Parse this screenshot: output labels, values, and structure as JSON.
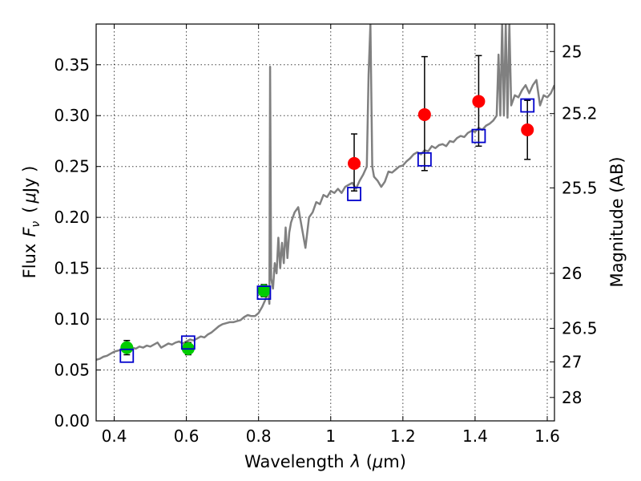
{
  "chart_data": {
    "type": "scatter",
    "xlabel_text": "Wavelength",
    "xlabel_symbol": "λ",
    "xlabel_unit_open": " (",
    "xlabel_unit_greek": "μ",
    "xlabel_unit_rest": "m)",
    "ylabel_text": "Flux",
    "ylabel_symbol": "F",
    "ylabel_subscript": "ν",
    "ylabel_unit_open": "(",
    "ylabel_unit_greek": "μ",
    "ylabel_unit_rest": "Jy )",
    "y2label": "Magnitude (AB)",
    "xlim": [
      0.35,
      1.62
    ],
    "ylim": [
      0.0,
      0.39
    ],
    "grid": true,
    "x_ticks": [
      0.4,
      0.6,
      0.8,
      1.0,
      1.2,
      1.4,
      1.6
    ],
    "x_tick_labels": [
      "0.4",
      "0.6",
      "0.8",
      "1",
      "1.2",
      "1.4",
      "1.6"
    ],
    "y_ticks": [
      0.0,
      0.05,
      0.1,
      0.15,
      0.2,
      0.25,
      0.3,
      0.35
    ],
    "y_tick_labels": [
      "0.00",
      "0.05",
      "0.10",
      "0.15",
      "0.20",
      "0.25",
      "0.30",
      "0.35"
    ],
    "mag_ticks": [
      {
        "label": "25",
        "flux": 0.363
      },
      {
        "label": "25.2",
        "flux": 0.302
      },
      {
        "label": "25.5",
        "flux": 0.229
      },
      {
        "label": "26",
        "flux": 0.145
      },
      {
        "label": "26.5",
        "flux": 0.091
      },
      {
        "label": "27",
        "flux": 0.058
      },
      {
        "label": "28",
        "flux": 0.023
      }
    ],
    "colors": {
      "model": "#808080",
      "green_points": "#00cc00",
      "red_points": "#ff0000",
      "model_photometry": "#0000cc",
      "error_bars": "#000000"
    },
    "series": [
      {
        "kind": "line",
        "x": [
          0.35,
          0.36,
          0.37,
          0.38,
          0.39,
          0.4,
          0.41,
          0.42,
          0.43,
          0.44,
          0.45,
          0.46,
          0.47,
          0.48,
          0.49,
          0.5,
          0.51,
          0.52,
          0.53,
          0.54,
          0.55,
          0.56,
          0.57,
          0.58,
          0.59,
          0.6,
          0.61,
          0.62,
          0.63,
          0.64,
          0.65,
          0.66,
          0.67,
          0.68,
          0.69,
          0.7,
          0.71,
          0.72,
          0.73,
          0.74,
          0.75,
          0.76,
          0.77,
          0.78,
          0.79,
          0.8,
          0.81,
          0.82,
          0.825,
          0.83,
          0.832,
          0.835,
          0.84,
          0.845,
          0.85,
          0.855,
          0.86,
          0.865,
          0.87,
          0.875,
          0.88,
          0.885,
          0.89,
          0.9,
          0.91,
          0.92,
          0.93,
          0.94,
          0.95,
          0.96,
          0.97,
          0.98,
          0.99,
          1.0,
          1.01,
          1.02,
          1.03,
          1.04,
          1.05,
          1.06,
          1.07,
          1.08,
          1.09,
          1.1,
          1.105,
          1.11,
          1.115,
          1.12,
          1.13,
          1.14,
          1.15,
          1.16,
          1.17,
          1.18,
          1.19,
          1.2,
          1.21,
          1.22,
          1.23,
          1.24,
          1.25,
          1.26,
          1.27,
          1.28,
          1.29,
          1.3,
          1.31,
          1.32,
          1.33,
          1.34,
          1.35,
          1.36,
          1.37,
          1.38,
          1.39,
          1.4,
          1.41,
          1.42,
          1.43,
          1.44,
          1.45,
          1.46,
          1.465,
          1.47,
          1.475,
          1.48,
          1.485,
          1.49,
          1.495,
          1.5,
          1.51,
          1.52,
          1.53,
          1.54,
          1.55,
          1.56,
          1.57,
          1.58,
          1.59,
          1.6,
          1.61,
          1.62
        ],
        "y": [
          0.06,
          0.061,
          0.063,
          0.064,
          0.066,
          0.068,
          0.069,
          0.07,
          0.071,
          0.069,
          0.072,
          0.071,
          0.073,
          0.072,
          0.074,
          0.073,
          0.075,
          0.077,
          0.072,
          0.074,
          0.076,
          0.075,
          0.077,
          0.078,
          0.076,
          0.078,
          0.08,
          0.079,
          0.081,
          0.083,
          0.082,
          0.085,
          0.087,
          0.09,
          0.093,
          0.095,
          0.096,
          0.097,
          0.097,
          0.098,
          0.099,
          0.102,
          0.104,
          0.103,
          0.103,
          0.106,
          0.112,
          0.12,
          0.13,
          0.115,
          0.348,
          0.14,
          0.13,
          0.155,
          0.145,
          0.18,
          0.15,
          0.175,
          0.155,
          0.19,
          0.16,
          0.185,
          0.195,
          0.205,
          0.21,
          0.19,
          0.17,
          0.2,
          0.205,
          0.215,
          0.213,
          0.222,
          0.22,
          0.226,
          0.224,
          0.228,
          0.224,
          0.23,
          0.232,
          0.234,
          0.228,
          0.236,
          0.242,
          0.25,
          0.34,
          0.39,
          0.25,
          0.24,
          0.236,
          0.23,
          0.235,
          0.245,
          0.244,
          0.247,
          0.25,
          0.251,
          0.255,
          0.258,
          0.262,
          0.264,
          0.262,
          0.266,
          0.265,
          0.27,
          0.268,
          0.271,
          0.272,
          0.27,
          0.275,
          0.274,
          0.278,
          0.28,
          0.279,
          0.283,
          0.285,
          0.284,
          0.288,
          0.286,
          0.29,
          0.292,
          0.295,
          0.3,
          0.36,
          0.3,
          0.39,
          0.3,
          0.39,
          0.298,
          0.39,
          0.31,
          0.32,
          0.318,
          0.325,
          0.33,
          0.322,
          0.33,
          0.335,
          0.31,
          0.32,
          0.318,
          0.322,
          0.33
        ]
      },
      {
        "kind": "points",
        "marker": "circle",
        "x": [
          0.435,
          0.605,
          0.815
        ],
        "y": [
          0.072,
          0.071,
          0.128
        ],
        "err_low": [
          0.007,
          0.006,
          0.006
        ],
        "err_high": [
          0.007,
          0.006,
          0.006
        ]
      },
      {
        "kind": "points",
        "marker": "circle",
        "x": [
          1.065,
          1.26,
          1.41,
          1.545
        ],
        "y": [
          0.253,
          0.301,
          0.314,
          0.286
        ],
        "err_low": [
          0.027,
          0.055,
          0.044,
          0.029
        ],
        "err_high": [
          0.029,
          0.057,
          0.045,
          0.029
        ]
      },
      {
        "kind": "points",
        "marker": "open-square",
        "x": [
          0.435,
          0.605,
          0.815,
          1.065,
          1.26,
          1.41,
          1.545
        ],
        "y": [
          0.064,
          0.077,
          0.126,
          0.223,
          0.257,
          0.28,
          0.31
        ]
      }
    ]
  }
}
